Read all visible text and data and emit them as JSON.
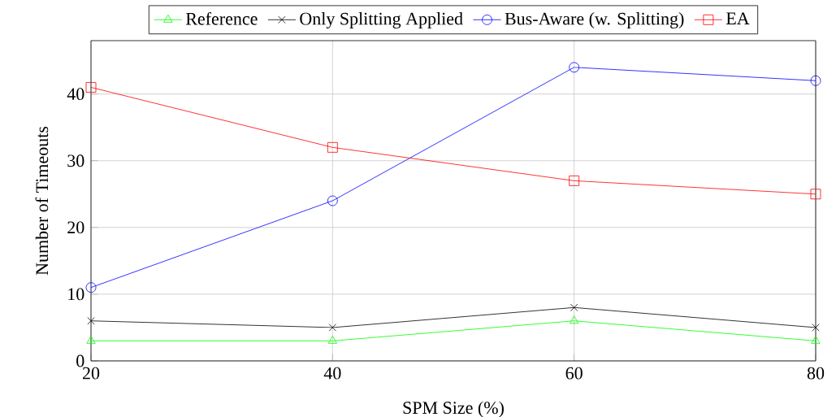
{
  "chart_data": {
    "type": "line",
    "xlabel": "SPM Size (%)",
    "ylabel": "Number of Timeouts",
    "x": [
      20,
      40,
      60,
      80
    ],
    "series": [
      {
        "name": "Reference",
        "color": "#00ff00",
        "marker": "triangle",
        "values": [
          3,
          3,
          6,
          3
        ]
      },
      {
        "name": "Only Splitting Applied",
        "color": "#000000",
        "marker": "cross",
        "values": [
          6,
          5,
          8,
          5
        ]
      },
      {
        "name": "Bus-Aware (w. Splitting)",
        "color": "#0000ff",
        "marker": "circle",
        "values": [
          11,
          24,
          44,
          42
        ]
      },
      {
        "name": "EA",
        "color": "#ff0000",
        "marker": "square",
        "values": [
          41,
          32,
          27,
          25
        ]
      }
    ],
    "xlim": [
      20,
      80
    ],
    "xticks": [
      20,
      40,
      60,
      80
    ],
    "ylim": [
      0,
      48
    ],
    "yticks": [
      0,
      10,
      20,
      30,
      40
    ],
    "grid": true,
    "legend": "top",
    "line_style": "solid"
  }
}
